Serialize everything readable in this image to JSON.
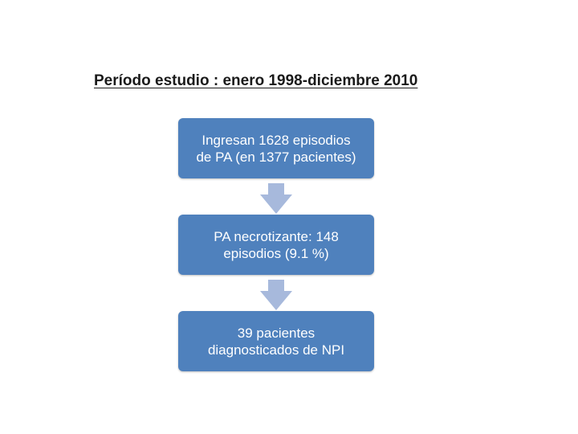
{
  "title": "Período estudio : enero 1998-diciembre 2010",
  "steps": [
    {
      "text": "Ingresan 1628 episodios\nde PA (en 1377 pacientes)"
    },
    {
      "text": "PA necrotizante: 148\nepisodios (9.1 %)"
    },
    {
      "text": "39 pacientes\ndiagnosticados de NPI"
    }
  ],
  "colors": {
    "box_fill": "#4f81bd",
    "box_text": "#ffffff",
    "arrow_fill": "#a7b9dc"
  },
  "icons": [
    "arrow-down-icon",
    "arrow-down-icon"
  ]
}
